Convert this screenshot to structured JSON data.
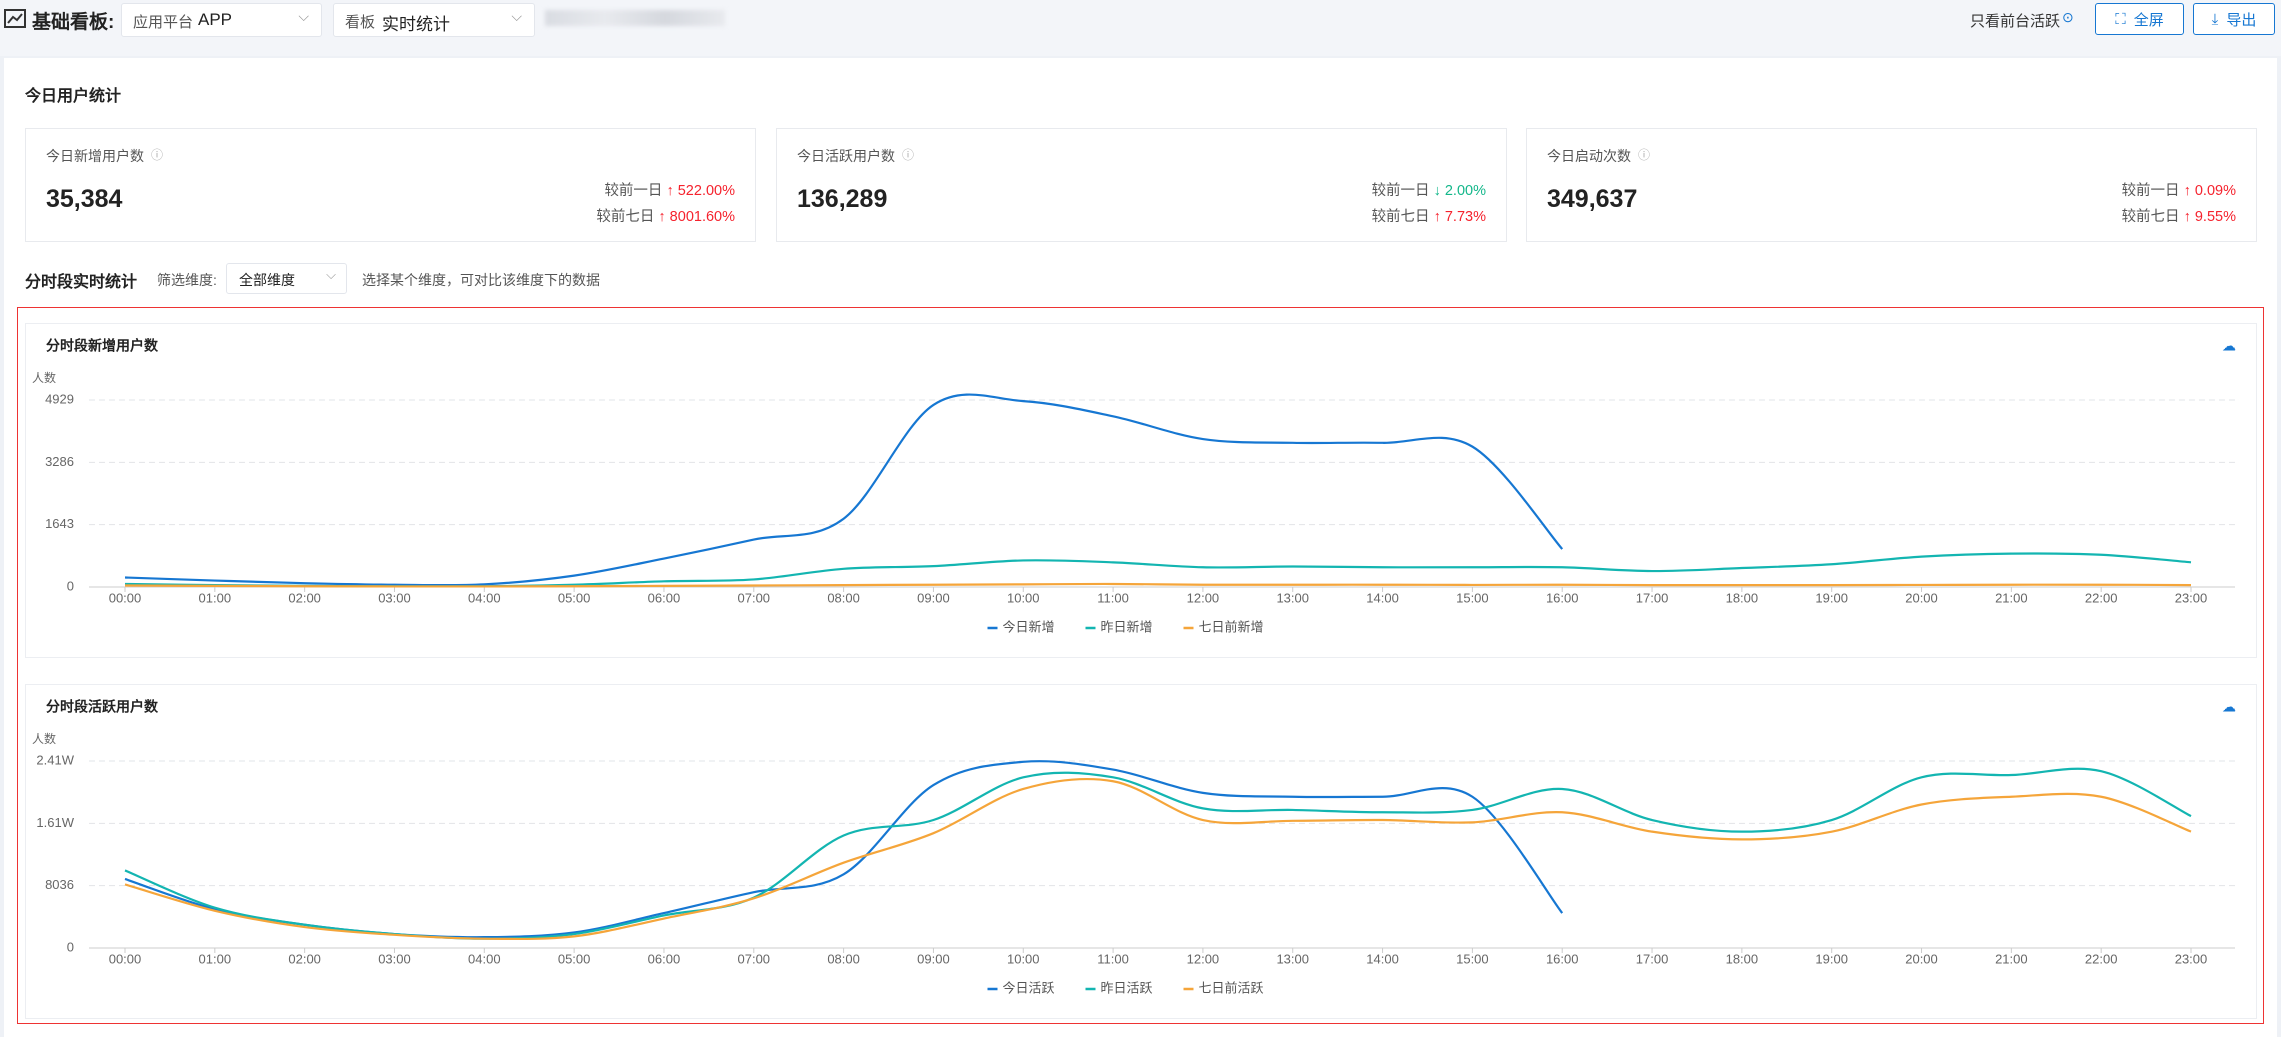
{
  "header": {
    "title": "基础看板:",
    "platform_label": "应用平台",
    "platform": "APP",
    "board_label": "看板",
    "board": "实时统计",
    "foreground_toggle": "只看前台活跃",
    "fullscreen": "全屏",
    "export": "导出"
  },
  "stats": {
    "title": "今日用户统计",
    "cards": [
      {
        "title": "今日新增用户数",
        "value": "35,384",
        "compare": [
          {
            "label": "较前一日",
            "change": "↑ 522.00%",
            "color": "#f5222d"
          },
          {
            "label": "较前七日",
            "change": "↑ 8001.60%",
            "color": "#f5222d"
          }
        ]
      },
      {
        "title": "今日活跃用户数",
        "value": "136,289",
        "compare": [
          {
            "label": "较前一日",
            "change": "↓ 2.00%",
            "color": "#13b78a"
          },
          {
            "label": "较前七日",
            "change": "↑ 7.73%",
            "color": "#f5222d"
          }
        ]
      },
      {
        "title": "今日启动次数",
        "value": "349,637",
        "compare": [
          {
            "label": "较前一日",
            "change": "↑ 0.09%",
            "color": "#f5222d"
          },
          {
            "label": "较前七日",
            "change": "↑ 9.55%",
            "color": "#f5222d"
          }
        ]
      }
    ]
  },
  "filter": {
    "title": "分时段实时统计",
    "label": "筛选维度:",
    "value": "全部维度",
    "hint": "选择某个维度，可对比该维度下的数据"
  },
  "chart_data": [
    {
      "type": "line",
      "title": "分时段新增用户数",
      "y_label": "人数",
      "categories": [
        "00:00",
        "01:00",
        "02:00",
        "03:00",
        "04:00",
        "05:00",
        "06:00",
        "07:00",
        "08:00",
        "09:00",
        "10:00",
        "11:00",
        "12:00",
        "13:00",
        "14:00",
        "15:00",
        "16:00",
        "17:00",
        "18:00",
        "19:00",
        "20:00",
        "21:00",
        "22:00",
        "23:00"
      ],
      "ylim": [
        0,
        4929
      ],
      "yticks": [
        0,
        1643,
        3286,
        4929
      ],
      "grid": true,
      "series": [
        {
          "name": "今日新增",
          "color": "#1677d2",
          "values": [
            250,
            170,
            100,
            60,
            70,
            300,
            750,
            1250,
            1800,
            4800,
            4900,
            4500,
            3900,
            3800,
            3800,
            3700,
            1000,
            null,
            null,
            null,
            null,
            null,
            null,
            null
          ]
        },
        {
          "name": "昨日新增",
          "color": "#13b5b1",
          "values": [
            80,
            50,
            30,
            20,
            20,
            60,
            150,
            200,
            480,
            550,
            700,
            650,
            520,
            540,
            520,
            520,
            520,
            420,
            500,
            600,
            800,
            880,
            850,
            650
          ]
        },
        {
          "name": "七日前新增",
          "color": "#f5a53a",
          "values": [
            40,
            30,
            20,
            15,
            15,
            20,
            30,
            40,
            50,
            60,
            70,
            80,
            60,
            60,
            60,
            55,
            60,
            50,
            50,
            50,
            55,
            60,
            60,
            50
          ]
        }
      ]
    },
    {
      "type": "line",
      "title": "分时段活跃用户数",
      "y_label": "人数",
      "categories": [
        "00:00",
        "01:00",
        "02:00",
        "03:00",
        "04:00",
        "05:00",
        "06:00",
        "07:00",
        "08:00",
        "09:00",
        "10:00",
        "11:00",
        "12:00",
        "13:00",
        "14:00",
        "15:00",
        "16:00",
        "17:00",
        "18:00",
        "19:00",
        "20:00",
        "21:00",
        "22:00",
        "23:00"
      ],
      "ylim": [
        0,
        24108
      ],
      "yticks": [
        0,
        8036,
        {
          "value": 16072,
          "label": "1.61W"
        },
        {
          "value": 24108,
          "label": "2.41W"
        }
      ],
      "grid": true,
      "series": [
        {
          "name": "今日活跃",
          "color": "#1677d2",
          "values": [
            8900,
            5000,
            3000,
            1800,
            1400,
            2000,
            4500,
            7200,
            9500,
            21000,
            24000,
            23000,
            20000,
            19500,
            19500,
            19500,
            4500,
            null,
            null,
            null,
            null,
            null,
            null,
            null
          ]
        },
        {
          "name": "昨日活跃",
          "color": "#13b5b1",
          "values": [
            10000,
            5200,
            3000,
            1800,
            1200,
            1800,
            4200,
            6500,
            14500,
            16500,
            22000,
            22000,
            18000,
            17800,
            17500,
            17800,
            20500,
            16500,
            15000,
            16500,
            22000,
            22300,
            22800,
            17000
          ]
        },
        {
          "name": "七日前活跃",
          "color": "#f5a53a",
          "values": [
            8200,
            4800,
            2700,
            1700,
            1200,
            1500,
            3800,
            6400,
            11000,
            14800,
            20500,
            21500,
            16500,
            16400,
            16500,
            16200,
            17500,
            15000,
            14000,
            15000,
            18500,
            19500,
            19500,
            15000
          ]
        }
      ]
    }
  ]
}
